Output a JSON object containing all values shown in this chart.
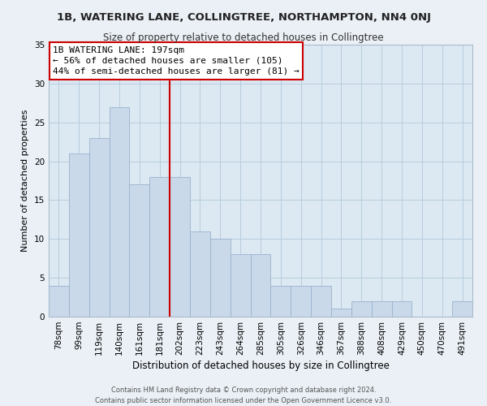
{
  "title": "1B, WATERING LANE, COLLINGTREE, NORTHAMPTON, NN4 0NJ",
  "subtitle": "Size of property relative to detached houses in Collingtree",
  "xlabel": "Distribution of detached houses by size in Collingtree",
  "ylabel": "Number of detached properties",
  "bar_labels": [
    "78sqm",
    "99sqm",
    "119sqm",
    "140sqm",
    "161sqm",
    "181sqm",
    "202sqm",
    "223sqm",
    "243sqm",
    "264sqm",
    "285sqm",
    "305sqm",
    "326sqm",
    "346sqm",
    "367sqm",
    "388sqm",
    "408sqm",
    "429sqm",
    "450sqm",
    "470sqm",
    "491sqm"
  ],
  "bar_heights": [
    4,
    21,
    23,
    27,
    17,
    18,
    18,
    11,
    10,
    8,
    8,
    4,
    4,
    4,
    1,
    2,
    2,
    2,
    0,
    0,
    2
  ],
  "bar_color": "#c9d9ea",
  "bar_edge_color": "#9ab3cc",
  "vline_pos": 5.5,
  "vline_color": "#cc0000",
  "annotation_title": "1B WATERING LANE: 197sqm",
  "annotation_line1": "← 56% of detached houses are smaller (105)",
  "annotation_line2": "44% of semi-detached houses are larger (81) →",
  "annotation_box_facecolor": "#ffffff",
  "annotation_box_edgecolor": "#cc0000",
  "ylim": [
    0,
    35
  ],
  "yticks": [
    0,
    5,
    10,
    15,
    20,
    25,
    30,
    35
  ],
  "footer1": "Contains HM Land Registry data © Crown copyright and database right 2024.",
  "footer2": "Contains public sector information licensed under the Open Government Licence v3.0.",
  "background_color": "#eaf0f6",
  "plot_bg_color": "#dce8f2",
  "grid_color": "#b8cede",
  "title_fontsize": 9.5,
  "subtitle_fontsize": 8.5,
  "xlabel_fontsize": 8.5,
  "ylabel_fontsize": 8,
  "tick_fontsize": 7.5,
  "annotation_title_fontsize": 8.5,
  "annotation_text_fontsize": 8,
  "footer_fontsize": 6
}
